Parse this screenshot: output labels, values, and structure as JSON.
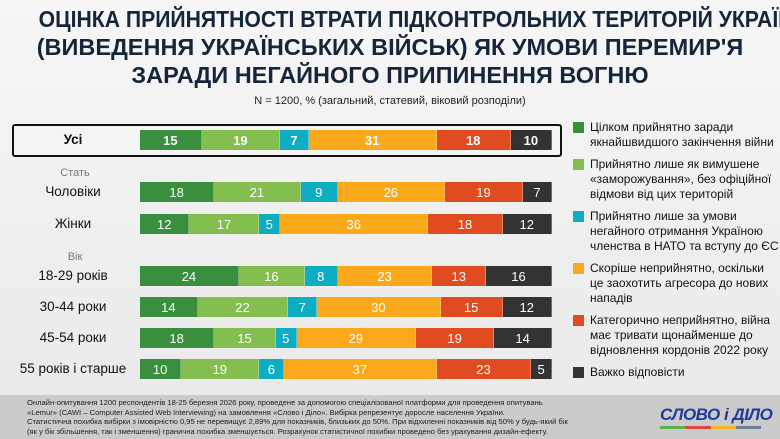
{
  "title_lines": [
    "ОЦІНКА ПРИЙНЯТНОСТІ ВТРАТИ ПІДКОНТРОЛЬНИХ ТЕРИТОРІЙ УКРАЇНИ",
    "(ВИВЕДЕННЯ УКРАЇНСЬКИХ ВІЙСЬК) ЯК УМОВИ ПЕРЕМИР'Я",
    "ЗАРАДИ НЕГАЙНОГО ПРИПИНЕННЯ ВОГНЮ"
  ],
  "subtitle": "N = 1200, % (загальний, статевий, віковий розподіли)",
  "chart_data": {
    "type": "bar",
    "orientation": "horizontal-stacked-100",
    "title": "ОЦІНКА ПРИЙНЯТНОСТІ ВТРАТИ ПІДКОНТРОЛЬНИХ ТЕРИТОРІЙ УКРАЇНИ (ВИВЕДЕННЯ УКРАЇНСЬКИХ ВІЙСЬК) ЯК УМОВИ ПЕРЕМИР'Я ЗАРАДИ НЕГАЙНОГО ПРИПИНЕННЯ ВОГНЮ",
    "groups": {
      "gender": "Стать",
      "age": "Вік"
    },
    "categories": [
      "Усі",
      "Чоловіки",
      "Жінки",
      "18-29 років",
      "30-44 роки",
      "45-54 роки",
      "55 років і старше"
    ],
    "legend_position": "right",
    "series": [
      {
        "name": "Цілком прийнятно заради якнайшвидшого закінчення війни",
        "color": "#3a8f3e",
        "values": [
          15,
          18,
          12,
          24,
          14,
          18,
          10
        ]
      },
      {
        "name": "Прийнятно лише як вимушене «заморожування», без офіційної відмови від цих територій",
        "color": "#83be4f",
        "values": [
          19,
          21,
          17,
          16,
          22,
          15,
          19
        ]
      },
      {
        "name": "Прийнятно лише за умови негайного отримання Україною членства в НАТО та вступу до ЄС",
        "color": "#0eadc4",
        "values": [
          7,
          9,
          5,
          8,
          7,
          5,
          6
        ]
      },
      {
        "name": "Скоріше неприйнятно, оскільки це заохотить агресора до нових нападів",
        "color": "#fba81a",
        "values": [
          31,
          26,
          36,
          23,
          30,
          29,
          37
        ]
      },
      {
        "name": "Категорично неприйнятно, війна має тривати щонайменше до відновлення кордонів 2022 року",
        "color": "#e04b1f",
        "values": [
          18,
          19,
          18,
          13,
          15,
          19,
          23
        ]
      },
      {
        "name": "Важко відповісти",
        "color": "#333333",
        "values": [
          10,
          7,
          12,
          16,
          12,
          14,
          5
        ]
      }
    ]
  },
  "footer": {
    "lines": [
      "Онлайн-опитування 1200 респондентів 18-25 березня 2026 року, проведене за допомогою спеціалізованої платформи для проведення опитувань",
      "«Lemur» (CAWI – Computer Assisted Web Interviewing) на замовлення «Слово і Діло». Вибірка репрезентує доросле населення України.",
      "Статистична похибка вибірки з імовірністю 0,95 не перевищує 2,89% для показників, близьких до 50%. При відхиленні показників від 50% у будь-який бік",
      "(як у бік збільшення, так і зменшення) гранична похибка зменшується. Розрахунок статистичної похибки проведено без урахування дизайн-ефекту."
    ],
    "logo": "СЛОВО і ДІЛО",
    "logo_colors": [
      "#5cb24a",
      "#e2483a",
      "#f5b326",
      "#6b7c93"
    ]
  }
}
